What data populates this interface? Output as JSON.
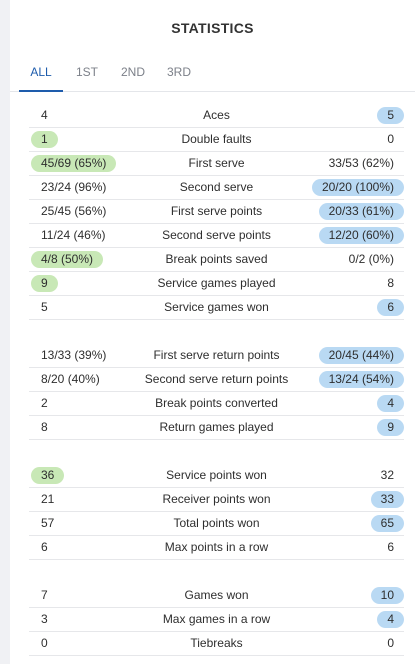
{
  "title": "STATISTICS",
  "tabs": [
    "ALL",
    "1ST",
    "2ND",
    "3RD"
  ],
  "active_tab": "ALL",
  "colors": {
    "accent": "#1e5cac",
    "left_highlight": "#c8e8b6",
    "right_highlight": "#b9d9f3"
  },
  "groups": [
    {
      "rows": [
        {
          "label": "Aces",
          "left": "4",
          "right": "5",
          "leader": "right"
        },
        {
          "label": "Double faults",
          "left": "1",
          "right": "0",
          "leader": "left"
        },
        {
          "label": "First serve",
          "left": "45/69 (65%)",
          "right": "33/53 (62%)",
          "leader": "left"
        },
        {
          "label": "Second serve",
          "left": "23/24 (96%)",
          "right": "20/20 (100%)",
          "leader": "right"
        },
        {
          "label": "First serve points",
          "left": "25/45 (56%)",
          "right": "20/33 (61%)",
          "leader": "right"
        },
        {
          "label": "Second serve points",
          "left": "11/24 (46%)",
          "right": "12/20 (60%)",
          "leader": "right"
        },
        {
          "label": "Break points saved",
          "left": "4/8 (50%)",
          "right": "0/2 (0%)",
          "leader": "left"
        },
        {
          "label": "Service games played",
          "left": "9",
          "right": "8",
          "leader": "left"
        },
        {
          "label": "Service games won",
          "left": "5",
          "right": "6",
          "leader": "right"
        }
      ]
    },
    {
      "rows": [
        {
          "label": "First serve return points",
          "left": "13/33 (39%)",
          "right": "20/45 (44%)",
          "leader": "right"
        },
        {
          "label": "Second serve return points",
          "left": "8/20 (40%)",
          "right": "13/24 (54%)",
          "leader": "right"
        },
        {
          "label": "Break points converted",
          "left": "2",
          "right": "4",
          "leader": "right"
        },
        {
          "label": "Return games played",
          "left": "8",
          "right": "9",
          "leader": "right"
        }
      ]
    },
    {
      "rows": [
        {
          "label": "Service points won",
          "left": "36",
          "right": "32",
          "leader": "left"
        },
        {
          "label": "Receiver points won",
          "left": "21",
          "right": "33",
          "leader": "right"
        },
        {
          "label": "Total points won",
          "left": "57",
          "right": "65",
          "leader": "right"
        },
        {
          "label": "Max points in a row",
          "left": "6",
          "right": "6",
          "leader": "none"
        }
      ]
    },
    {
      "rows": [
        {
          "label": "Games won",
          "left": "7",
          "right": "10",
          "leader": "right"
        },
        {
          "label": "Max games in a row",
          "left": "3",
          "right": "4",
          "leader": "right"
        },
        {
          "label": "Tiebreaks",
          "left": "0",
          "right": "0",
          "leader": "none"
        }
      ]
    }
  ]
}
